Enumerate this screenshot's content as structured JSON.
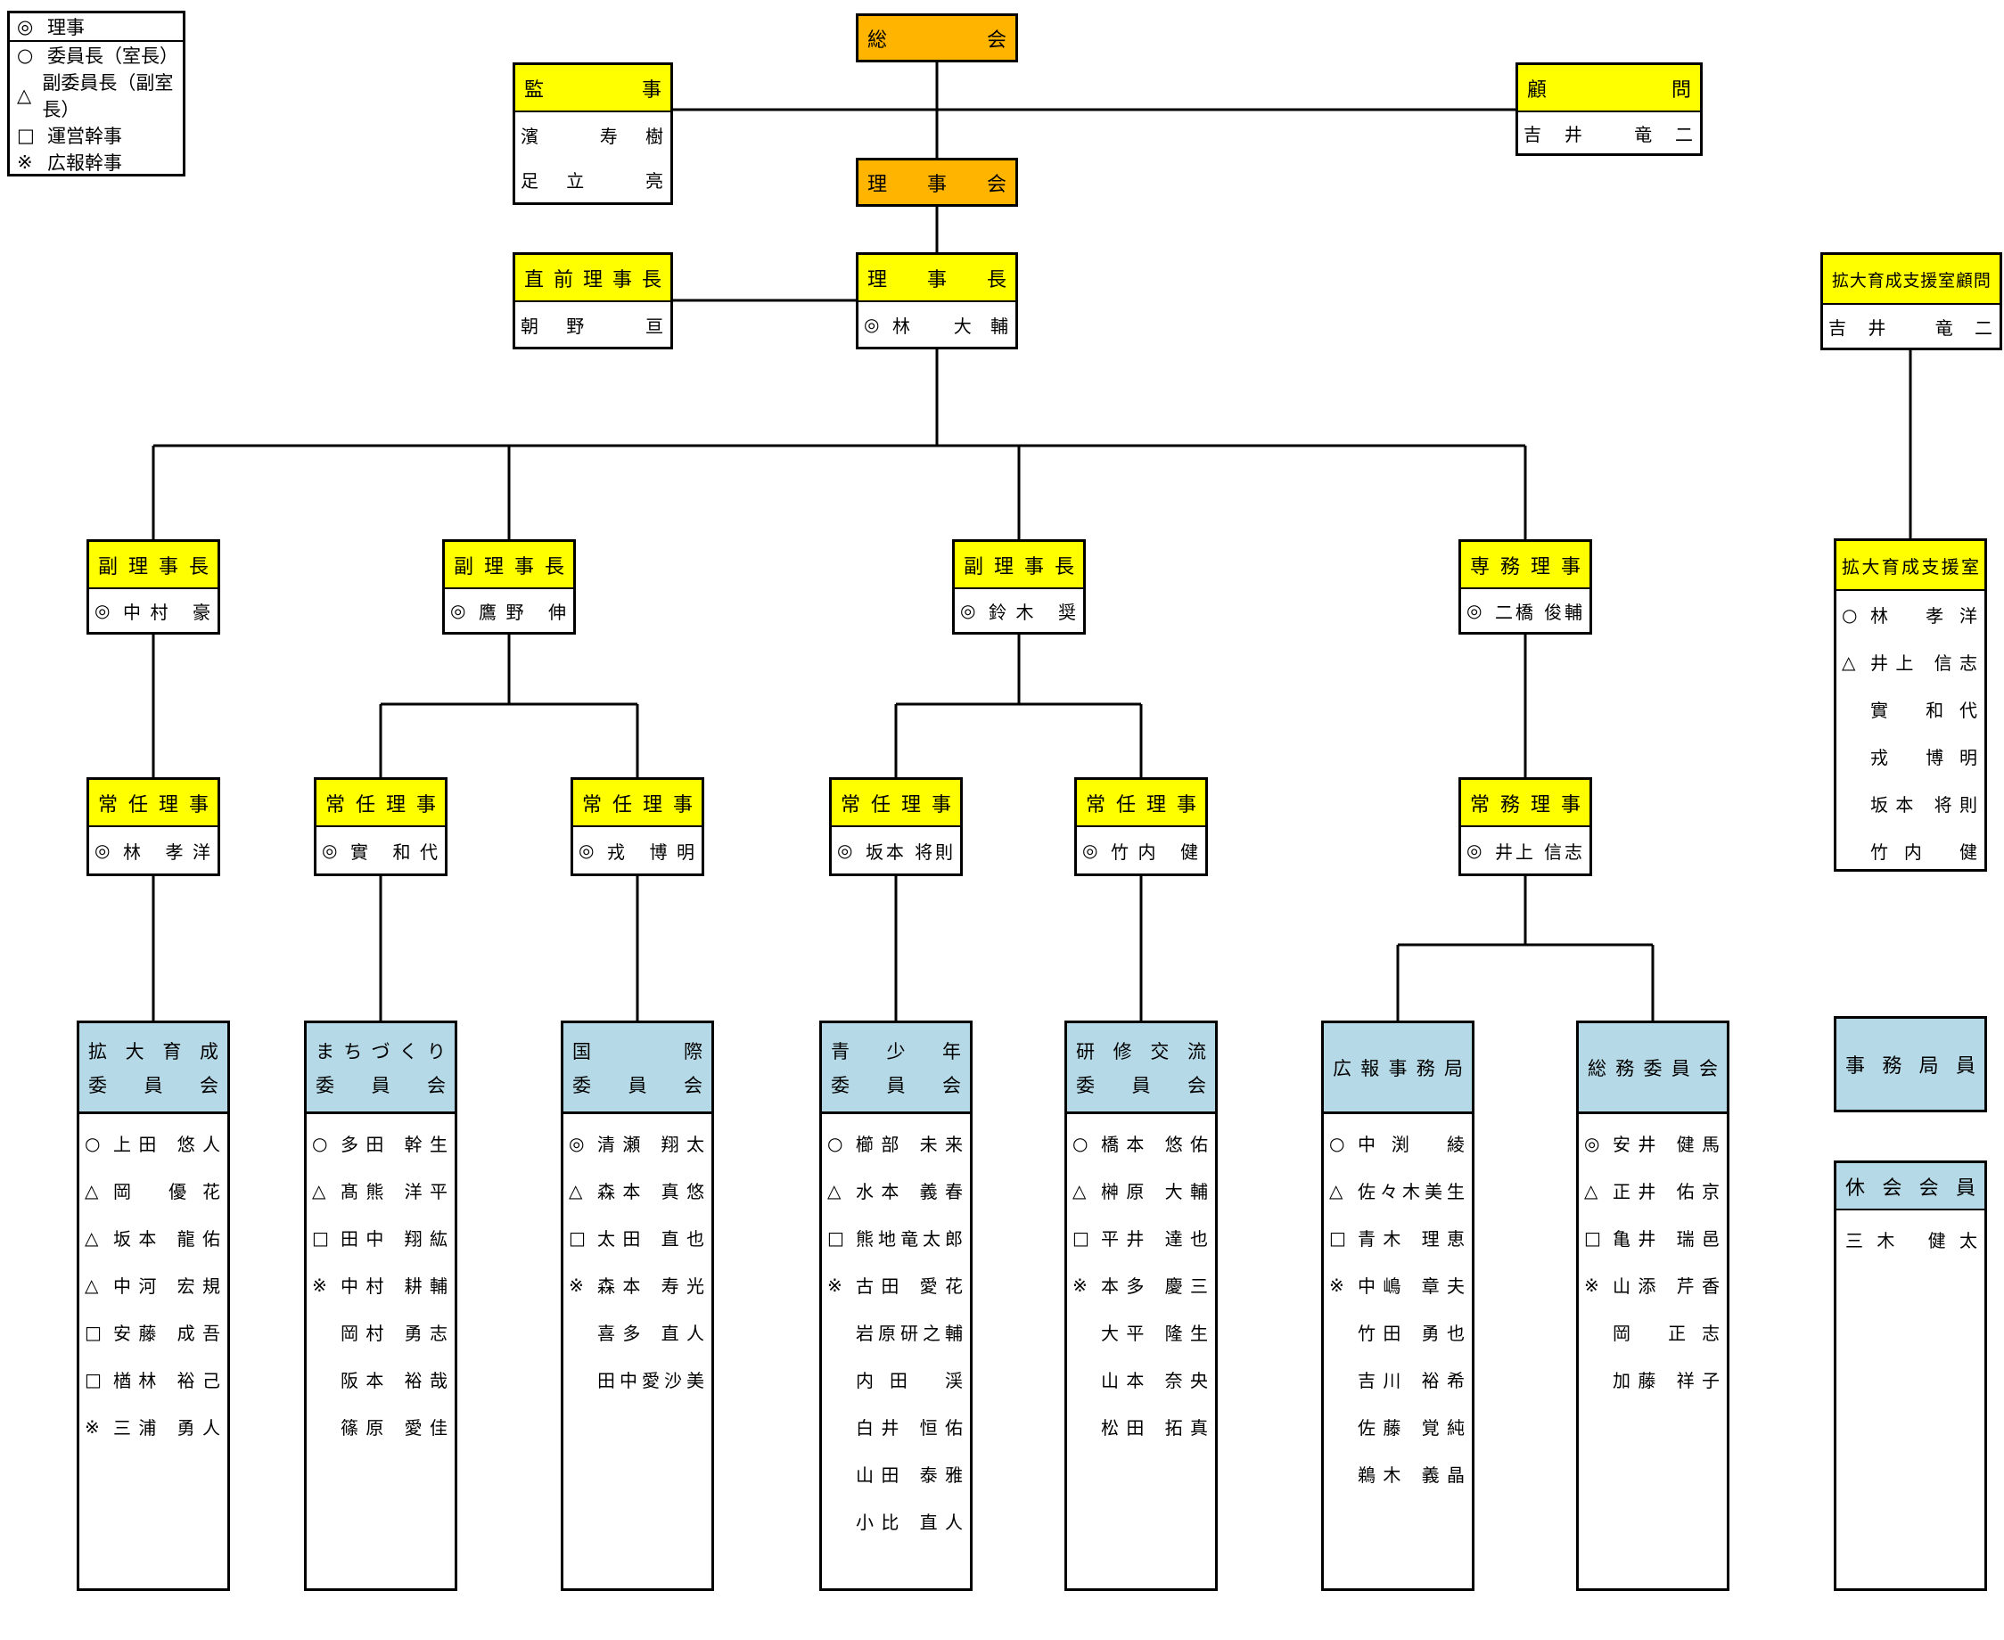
{
  "legend": {
    "items": [
      {
        "mark": "◎",
        "label": "理事"
      },
      {
        "mark": "○",
        "label": "委員長（室長）"
      },
      {
        "mark": "△",
        "label": "副委員長（副室長）"
      },
      {
        "mark": "□",
        "label": "運営幹事"
      },
      {
        "mark": "※",
        "label": "広報幹事"
      }
    ]
  },
  "top": {
    "soukai": "総会",
    "rijikai": "理事会",
    "kanji": {
      "title": "監事",
      "members": [
        "濱 寿樹",
        "足立 亮"
      ]
    },
    "komon": {
      "title": "顧問",
      "members": [
        "吉井 竜二"
      ]
    },
    "chokuzen": {
      "title": "直前理事長",
      "members": [
        "朝野 亘"
      ]
    },
    "rijicho": {
      "title": "理事長",
      "mark": "◎",
      "name": "林 大輔"
    },
    "kakudai_komon": {
      "title": "拡大育成支援室顧問",
      "members": [
        "吉井 竜二"
      ]
    }
  },
  "executives": [
    {
      "title": "副理事長",
      "mark": "◎",
      "name": "中村 豪"
    },
    {
      "title": "副理事長",
      "mark": "◎",
      "name": "鷹野 伸"
    },
    {
      "title": "副理事長",
      "mark": "◎",
      "name": "鈴木 奨"
    },
    {
      "title": "専務理事",
      "mark": "◎",
      "name": "二橋 俊輔"
    }
  ],
  "shienshitsu": {
    "title": "拡大育成支援室",
    "members": [
      {
        "mark": "○",
        "name": "林 孝洋"
      },
      {
        "mark": "△",
        "name": "井上 信志"
      },
      {
        "mark": "",
        "name": "實 和代"
      },
      {
        "mark": "",
        "name": "戎 博明"
      },
      {
        "mark": "",
        "name": "坂本 将則"
      },
      {
        "mark": "",
        "name": "竹内 健"
      }
    ]
  },
  "directors": [
    {
      "title": "常任理事",
      "mark": "◎",
      "name": "林 孝洋"
    },
    {
      "title": "常任理事",
      "mark": "◎",
      "name": "實 和代"
    },
    {
      "title": "常任理事",
      "mark": "◎",
      "name": "戎 博明"
    },
    {
      "title": "常任理事",
      "mark": "◎",
      "name": "坂本 将則"
    },
    {
      "title": "常任理事",
      "mark": "◎",
      "name": "竹内 健"
    },
    {
      "title": "常務理事",
      "mark": "◎",
      "name": "井上 信志"
    }
  ],
  "committees": [
    {
      "header_lines": [
        "拡大育成",
        "委員会"
      ],
      "members": [
        {
          "mark": "○",
          "name": "上田 悠人"
        },
        {
          "mark": "△",
          "name": "岡 優花"
        },
        {
          "mark": "△",
          "name": "坂本 龍佑"
        },
        {
          "mark": "△",
          "name": "中河 宏規"
        },
        {
          "mark": "□",
          "name": "安藤 成吾"
        },
        {
          "mark": "□",
          "name": "楢林 裕己"
        },
        {
          "mark": "※",
          "name": "三浦 勇人"
        }
      ]
    },
    {
      "header_lines": [
        "まちづくり",
        "委員会"
      ],
      "members": [
        {
          "mark": "○",
          "name": "多田 幹生"
        },
        {
          "mark": "△",
          "name": "髙熊 洋平"
        },
        {
          "mark": "□",
          "name": "田中 翔紘"
        },
        {
          "mark": "※",
          "name": "中村 耕輔"
        },
        {
          "mark": "",
          "name": "岡村 勇志"
        },
        {
          "mark": "",
          "name": "阪本 裕哉"
        },
        {
          "mark": "",
          "name": "篠原 愛佳"
        }
      ]
    },
    {
      "header_lines": [
        "国際",
        "委員会"
      ],
      "members": [
        {
          "mark": "◎",
          "name": "清瀬 翔太"
        },
        {
          "mark": "△",
          "name": "森本 真悠"
        },
        {
          "mark": "□",
          "name": "太田 直也"
        },
        {
          "mark": "※",
          "name": "森本 寿光"
        },
        {
          "mark": "",
          "name": "喜多 直人"
        },
        {
          "mark": "",
          "name": "田中愛沙美"
        }
      ]
    },
    {
      "header_lines": [
        "青少年",
        "委員会"
      ],
      "members": [
        {
          "mark": "○",
          "name": "櫛部 未来"
        },
        {
          "mark": "△",
          "name": "水本 義春"
        },
        {
          "mark": "□",
          "name": "熊地竜太郎"
        },
        {
          "mark": "※",
          "name": "古田 愛花"
        },
        {
          "mark": "",
          "name": "岩原研之輔"
        },
        {
          "mark": "",
          "name": "内田 渓"
        },
        {
          "mark": "",
          "name": "白井 恒佑"
        },
        {
          "mark": "",
          "name": "山田 泰雅"
        },
        {
          "mark": "",
          "name": "小比 直人"
        }
      ]
    },
    {
      "header_lines": [
        "研修交流",
        "委員会"
      ],
      "members": [
        {
          "mark": "○",
          "name": "橋本 悠佑"
        },
        {
          "mark": "△",
          "name": "榊原 大輔"
        },
        {
          "mark": "□",
          "name": "平井 達也"
        },
        {
          "mark": "※",
          "name": "本多 慶三"
        },
        {
          "mark": "",
          "name": "大平 隆生"
        },
        {
          "mark": "",
          "name": "山本 奈央"
        },
        {
          "mark": "",
          "name": "松田 拓真"
        }
      ]
    },
    {
      "header_lines": [
        "広報事務局"
      ],
      "members": [
        {
          "mark": "○",
          "name": "中渕 綾"
        },
        {
          "mark": "△",
          "name": "佐々木美生"
        },
        {
          "mark": "□",
          "name": "青木 理恵"
        },
        {
          "mark": "※",
          "name": "中嶋 章夫"
        },
        {
          "mark": "",
          "name": "竹田 勇也"
        },
        {
          "mark": "",
          "name": "吉川 裕希"
        },
        {
          "mark": "",
          "name": "佐藤 覚純"
        },
        {
          "mark": "",
          "name": "鵜木 義晶"
        }
      ]
    },
    {
      "header_lines": [
        "総務委員会"
      ],
      "members": [
        {
          "mark": "◎",
          "name": "安井 健馬"
        },
        {
          "mark": "△",
          "name": "正井 佑京"
        },
        {
          "mark": "□",
          "name": "亀井 瑞邑"
        },
        {
          "mark": "※",
          "name": "山添 芹香"
        },
        {
          "mark": "",
          "name": "岡 正志"
        },
        {
          "mark": "",
          "name": "加藤 祥子"
        }
      ]
    }
  ],
  "jimukyoku": {
    "title": "事務局員"
  },
  "kyukai": {
    "title": "休会会員",
    "members": [
      {
        "mark": "",
        "name": "三木 健太"
      }
    ]
  },
  "colors": {
    "orange": "#FFB400",
    "yellow": "#FFFF00",
    "blue": "#B5D9E6",
    "line": "#000000"
  }
}
